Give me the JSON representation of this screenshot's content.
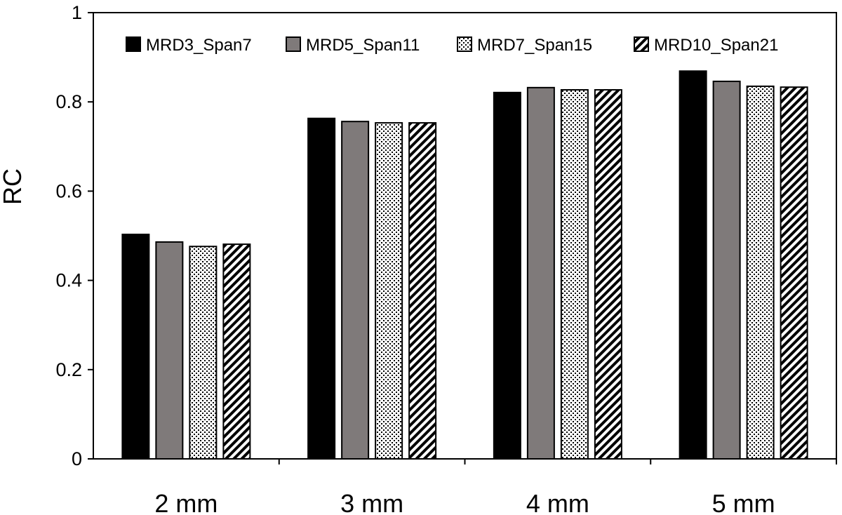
{
  "chart_data": {
    "type": "bar",
    "title": "",
    "xlabel": "",
    "ylabel": "RC",
    "ylim": [
      0,
      1
    ],
    "yticks": [
      0,
      0.2,
      0.4,
      0.6,
      0.8,
      1
    ],
    "ytick_labels": [
      "0",
      "0.2",
      "0.4",
      "0.6",
      "0.8",
      "1"
    ],
    "grid": false,
    "legend_position": "top",
    "categories": [
      "2 mm",
      "3 mm",
      "4 mm",
      "5 mm"
    ],
    "series": [
      {
        "name": "MRD3_Span7",
        "values": [
          0.503,
          0.763,
          0.821,
          0.869
        ],
        "fill": "solid-black",
        "color": "#000000"
      },
      {
        "name": "MRD5_Span11",
        "values": [
          0.486,
          0.756,
          0.832,
          0.846
        ],
        "fill": "solid-gray",
        "color": "#7f7a7a"
      },
      {
        "name": "MRD7_Span15",
        "values": [
          0.476,
          0.753,
          0.827,
          0.835
        ],
        "fill": "dotted",
        "color": "#000000"
      },
      {
        "name": "MRD10_Span21",
        "values": [
          0.481,
          0.753,
          0.827,
          0.833
        ],
        "fill": "diagonal-hatch",
        "color": "#000000"
      }
    ]
  }
}
